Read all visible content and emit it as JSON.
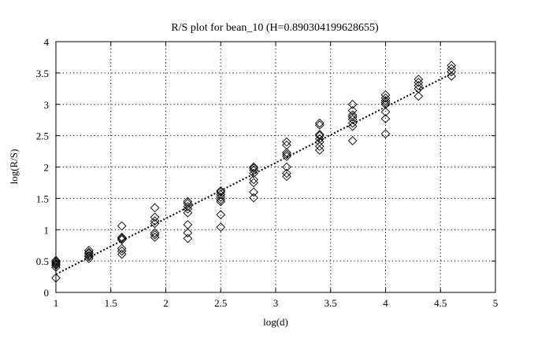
{
  "chart_data": {
    "type": "scatter",
    "title": "R/S plot for bean_10 (H=0.890304199628655)",
    "xlabel": "log(d)",
    "ylabel": "log(R/S)",
    "xlim": [
      1,
      5
    ],
    "ylim": [
      0,
      4
    ],
    "xticks": [
      1,
      1.5,
      2,
      2.5,
      3,
      3.5,
      4,
      4.5,
      5
    ],
    "yticks": [
      0,
      0.5,
      1,
      1.5,
      2,
      2.5,
      3,
      3.5,
      4
    ],
    "grid": true,
    "legend": "none",
    "series": [
      {
        "marker": "diamond",
        "points": [
          [
            1.0,
            0.23
          ],
          [
            1.0,
            0.4
          ],
          [
            1.0,
            0.43
          ],
          [
            1.0,
            0.45
          ],
          [
            1.0,
            0.47
          ],
          [
            1.0,
            0.49
          ],
          [
            1.0,
            0.51
          ],
          [
            1.3,
            0.54
          ],
          [
            1.3,
            0.57
          ],
          [
            1.3,
            0.59
          ],
          [
            1.3,
            0.62
          ],
          [
            1.3,
            0.64
          ],
          [
            1.3,
            0.67
          ],
          [
            1.6,
            0.61
          ],
          [
            1.6,
            0.66
          ],
          [
            1.6,
            0.7
          ],
          [
            1.6,
            0.84
          ],
          [
            1.6,
            0.86
          ],
          [
            1.6,
            0.88
          ],
          [
            1.6,
            1.06
          ],
          [
            1.9,
            0.88
          ],
          [
            1.9,
            0.92
          ],
          [
            1.9,
            0.95
          ],
          [
            1.9,
            1.1
          ],
          [
            1.9,
            1.14
          ],
          [
            1.9,
            1.2
          ],
          [
            1.9,
            1.35
          ],
          [
            2.2,
            0.86
          ],
          [
            2.2,
            0.95
          ],
          [
            2.2,
            1.08
          ],
          [
            2.2,
            1.27
          ],
          [
            2.2,
            1.33
          ],
          [
            2.2,
            1.37
          ],
          [
            2.2,
            1.42
          ],
          [
            2.2,
            1.45
          ],
          [
            2.5,
            1.04
          ],
          [
            2.5,
            1.24
          ],
          [
            2.5,
            1.45
          ],
          [
            2.5,
            1.48
          ],
          [
            2.5,
            1.52
          ],
          [
            2.5,
            1.56
          ],
          [
            2.5,
            1.6
          ],
          [
            2.5,
            1.62
          ],
          [
            2.8,
            1.51
          ],
          [
            2.8,
            1.6
          ],
          [
            2.8,
            1.75
          ],
          [
            2.8,
            1.8
          ],
          [
            2.8,
            1.9
          ],
          [
            2.8,
            1.95
          ],
          [
            2.8,
            1.98
          ],
          [
            2.8,
            2.0
          ],
          [
            3.1,
            1.85
          ],
          [
            3.1,
            1.9
          ],
          [
            3.1,
            2.0
          ],
          [
            3.1,
            2.17
          ],
          [
            3.1,
            2.2
          ],
          [
            3.1,
            2.23
          ],
          [
            3.1,
            2.35
          ],
          [
            3.1,
            2.4
          ],
          [
            3.4,
            2.27
          ],
          [
            3.4,
            2.33
          ],
          [
            3.4,
            2.4
          ],
          [
            3.4,
            2.45
          ],
          [
            3.4,
            2.5
          ],
          [
            3.4,
            2.52
          ],
          [
            3.4,
            2.67
          ],
          [
            3.4,
            2.7
          ],
          [
            3.7,
            2.42
          ],
          [
            3.7,
            2.65
          ],
          [
            3.7,
            2.7
          ],
          [
            3.7,
            2.76
          ],
          [
            3.7,
            2.8
          ],
          [
            3.7,
            2.83
          ],
          [
            3.7,
            2.9
          ],
          [
            3.7,
            3.0
          ],
          [
            4.0,
            2.53
          ],
          [
            4.0,
            2.77
          ],
          [
            4.0,
            2.88
          ],
          [
            4.0,
            3.0
          ],
          [
            4.0,
            3.03
          ],
          [
            4.0,
            3.06
          ],
          [
            4.0,
            3.1
          ],
          [
            4.0,
            3.15
          ],
          [
            4.3,
            3.13
          ],
          [
            4.3,
            3.25
          ],
          [
            4.3,
            3.3
          ],
          [
            4.3,
            3.35
          ],
          [
            4.3,
            3.4
          ],
          [
            4.6,
            3.45
          ],
          [
            4.6,
            3.52
          ],
          [
            4.6,
            3.57
          ],
          [
            4.6,
            3.62
          ]
        ]
      }
    ],
    "fit_line": {
      "x": [
        1.0,
        4.6
      ],
      "y": [
        0.29,
        3.49
      ]
    }
  }
}
